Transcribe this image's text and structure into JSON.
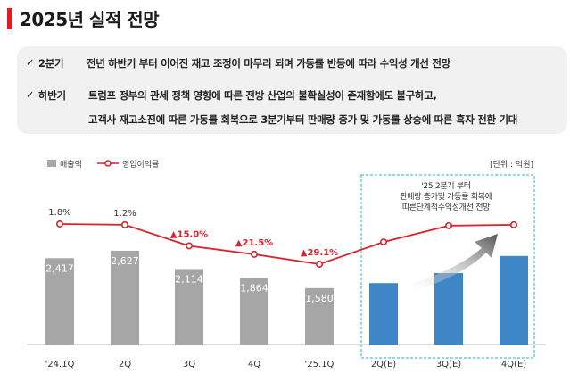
{
  "page_title": "2025년 실적 전망",
  "colors": {
    "accent": "#e31b23",
    "actual_bar": "#a6a6a6",
    "forecast_bar": "#3f86c6",
    "line": "#d9232d",
    "box_border": "#4dbfe0"
  },
  "summary": {
    "check_icon": "check-icon",
    "items": [
      {
        "period": "2분기",
        "lines": [
          "전년 하반기 부터 이어진 재고 조정이 마무리 되며 가동률 반등에 따라 수익성 개선 전망"
        ]
      },
      {
        "period": "하반기",
        "lines": [
          "트럼프 정부의 관세 정책 영향에 따른 전방 산업의 불확실성이 존재함에도 불구하고,",
          "고객사 재고소진에 따른 가동률 회복으로 3분기부터 판매량 증가 및 가동률 상승에 따른 흑자 전환 기대"
        ]
      }
    ]
  },
  "chart_data": {
    "type": "bar",
    "categories": [
      "'24.1Q",
      "2Q",
      "3Q",
      "4Q",
      "'25.1Q",
      "2Q(E)",
      "3Q(E)",
      "4Q(E)"
    ],
    "series": [
      {
        "name": "매출액",
        "type": "bar",
        "values": [
          2417,
          2627,
          2114,
          1864,
          1580,
          1720,
          2000,
          2480
        ],
        "value_labels": [
          "2,417",
          "2,627",
          "2,114",
          "1,864",
          "1,580",
          null,
          null,
          null
        ]
      },
      {
        "name": "영업이익률",
        "type": "line",
        "values": [
          1.8,
          1.2,
          -15.0,
          -21.5,
          -29.1,
          -12.0,
          0.5,
          1.2
        ],
        "value_labels": [
          "1.8%",
          "1.2%",
          "▲15.0%",
          "▲21.5%",
          "▲29.1%",
          null,
          null,
          null
        ]
      }
    ],
    "forecast_start_index": 5,
    "unit_label": "[단위 : 억원]",
    "annotation_lines": [
      "'25.2분기 부터",
      "판매량 증가및 가동률 회복에",
      "따른단계적수익성개선 전망"
    ],
    "bar_ylim": [
      0,
      3900
    ],
    "line_ylim": [
      -45,
      12
    ]
  }
}
